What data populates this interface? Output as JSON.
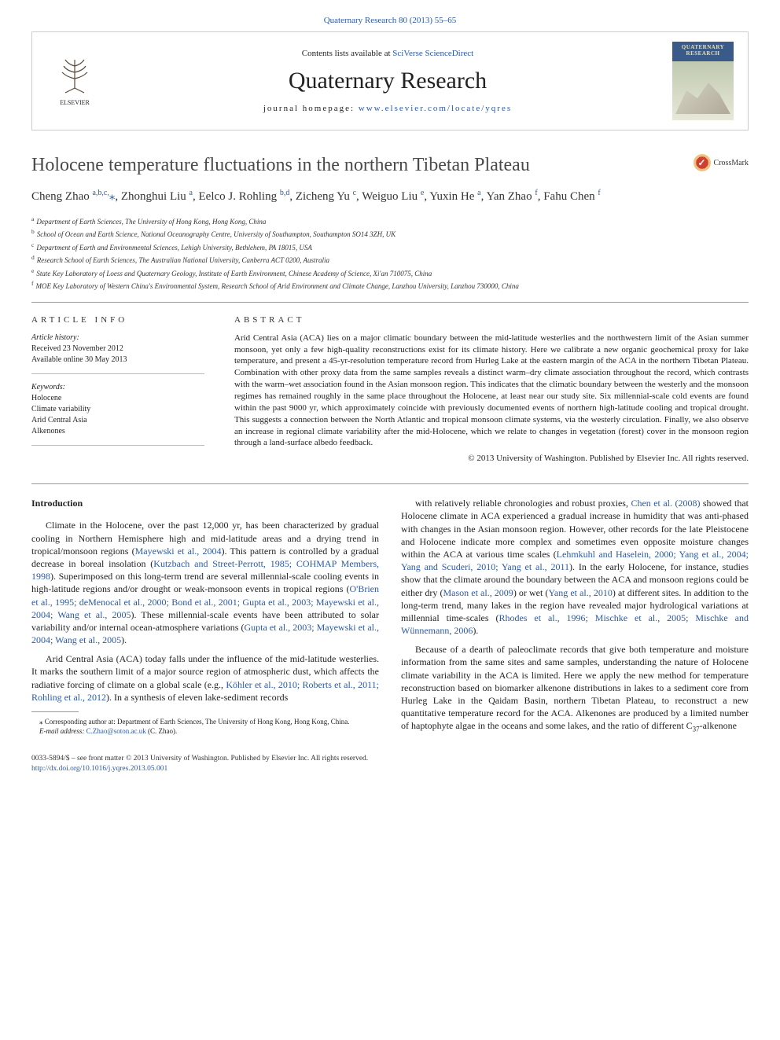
{
  "header": {
    "journal_ref": "Quaternary Research 80 (2013) 55–65",
    "contents_prefix": "Contents lists available at ",
    "contents_link": "SciVerse ScienceDirect",
    "journal_name": "Quaternary Research",
    "homepage_prefix": "journal homepage: ",
    "homepage_url": "www.elsevier.com/locate/yqres",
    "cover_label": "QUATERNARY RESEARCH",
    "elsevier_label": "ELSEVIER"
  },
  "crossmark": {
    "label": "CrossMark"
  },
  "article": {
    "title": "Holocene temperature fluctuations in the northern Tibetan Plateau",
    "authors_html": "Cheng Zhao <sup>a,b,c,</sup><span class='star'>⁎</span>, Zhonghui Liu <sup>a</sup>, Eelco J. Rohling <sup>b,d</sup>, Zicheng Yu <sup>c</sup>, Weiguo Liu <sup>e</sup>, Yuxin He <sup>a</sup>, Yan Zhao <sup>f</sup>, Fahu Chen <sup>f</sup>",
    "affiliations": [
      {
        "key": "a",
        "text": "Department of Earth Sciences, The University of Hong Kong, Hong Kong, China"
      },
      {
        "key": "b",
        "text": "School of Ocean and Earth Science, National Oceanography Centre, University of Southampton, Southampton SO14 3ZH, UK"
      },
      {
        "key": "c",
        "text": "Department of Earth and Environmental Sciences, Lehigh University, Bethlehem, PA 18015, USA"
      },
      {
        "key": "d",
        "text": "Research School of Earth Sciences, The Australian National University, Canberra ACT 0200, Australia"
      },
      {
        "key": "e",
        "text": "State Key Laboratory of Loess and Quaternary Geology, Institute of Earth Environment, Chinese Academy of Science, Xi'an 710075, China"
      },
      {
        "key": "f",
        "text": "MOE Key Laboratory of Western China's Environmental System, Research School of Arid Environment and Climate Change, Lanzhou University, Lanzhou 730000, China"
      }
    ]
  },
  "meta": {
    "info_heading": "ARTICLE INFO",
    "history_label": "Article history:",
    "received": "Received 23 November 2012",
    "online": "Available online 30 May 2013",
    "keywords_label": "Keywords:",
    "keywords": [
      "Holocene",
      "Climate variability",
      "Arid Central Asia",
      "Alkenones"
    ]
  },
  "abstract": {
    "heading": "ABSTRACT",
    "text": "Arid Central Asia (ACA) lies on a major climatic boundary between the mid-latitude westerlies and the northwestern limit of the Asian summer monsoon, yet only a few high-quality reconstructions exist for its climate history. Here we calibrate a new organic geochemical proxy for lake temperature, and present a 45-yr-resolution temperature record from Hurleg Lake at the eastern margin of the ACA in the northern Tibetan Plateau. Combination with other proxy data from the same samples reveals a distinct warm–dry climate association throughout the record, which contrasts with the warm–wet association found in the Asian monsoon region. This indicates that the climatic boundary between the westerly and the monsoon regimes has remained roughly in the same place throughout the Holocene, at least near our study site. Six millennial-scale cold events are found within the past 9000 yr, which approximately coincide with previously documented events of northern high-latitude cooling and tropical drought. This suggests a connection between the North Atlantic and tropical monsoon climate systems, via the westerly circulation. Finally, we also observe an increase in regional climate variability after the mid-Holocene, which we relate to changes in vegetation (forest) cover in the monsoon region through a land-surface albedo feedback.",
    "copyright": "© 2013 University of Washington. Published by Elsevier Inc. All rights reserved."
  },
  "body": {
    "intro_heading": "Introduction",
    "p1_a": "Climate in the Holocene, over the past 12,000 yr, has been characterized by gradual cooling in Northern Hemisphere high and mid-latitude areas and a drying trend in tropical/monsoon regions (",
    "p1_link1": "Mayewski et al., 2004",
    "p1_b": "). This pattern is controlled by a gradual decrease in boreal insolation (",
    "p1_link2": "Kutzbach and Street-Perrott, 1985; COHMAP Members, 1998",
    "p1_c": "). Superimposed on this long-term trend are several millennial-scale cooling events in high-latitude regions and/or drought or weak-monsoon events in tropical regions (",
    "p1_link3": "O'Brien et al., 1995; deMenocal et al., 2000; Bond et al., 2001; Gupta et al., 2003; Mayewski et al., 2004; Wang et al., 2005",
    "p1_d": "). These millennial-scale events have been attributed to solar variability and/or internal ocean-atmosphere variations (",
    "p1_link4": "Gupta et al., 2003; Mayewski et al., 2004; Wang et al., 2005",
    "p1_e": ").",
    "p2_a": "Arid Central Asia (ACA) today falls under the influence of the mid-latitude westerlies. It marks the southern limit of a major source region of atmospheric dust, which affects the radiative forcing of climate on a global scale (e.g., ",
    "p2_link1": "Köhler et al., 2010; Roberts et al., 2011; Rohling et al., 2012",
    "p2_b": "). In a synthesis of eleven lake-sediment records",
    "p3_a": "with relatively reliable chronologies and robust proxies, ",
    "p3_link1": "Chen et al. (2008)",
    "p3_b": " showed that Holocene climate in ACA experienced a gradual increase in humidity that was anti-phased with changes in the Asian monsoon region. However, other records for the late Pleistocene and Holocene indicate more complex and sometimes even opposite moisture changes within the ACA at various time scales (",
    "p3_link2": "Lehmkuhl and Haselein, 2000; Yang et al., 2004; Yang and Scuderi, 2010; Yang et al., 2011",
    "p3_c": "). In the early Holocene, for instance, studies show that the climate around the boundary between the ACA and monsoon regions could be either dry (",
    "p3_link3": "Mason et al., 2009",
    "p3_d": ") or wet (",
    "p3_link4": "Yang et al., 2010",
    "p3_e": ") at different sites. In addition to the long-term trend, many lakes in the region have revealed major hydrological variations at millennial time-scales (",
    "p3_link5": "Rhodes et al., 1996; Mischke et al., 2005; Mischke and Wünnemann, 2006",
    "p3_f": ").",
    "p4_a": "Because of a dearth of paleoclimate records that give both temperature and moisture information from the same sites and same samples, understanding the nature of Holocene climate variability in the ACA is limited. Here we apply the new method for temperature reconstruction based on biomarker alkenone distributions in lakes to a sediment core from Hurleg Lake in the Qaidam Basin, northern Tibetan Plateau, to reconstruct a new quantitative temperature record for the ACA. Alkenones are produced by a limited number of haptophyte algae in the oceans and some lakes, and the ratio of different C",
    "p4_sub": "37",
    "p4_b": "-alkenone"
  },
  "footnotes": {
    "corr_a": "⁎ Corresponding author at: Department of Earth Sciences, The University of Hong Kong, Hong Kong, China.",
    "email_label": "E-mail address: ",
    "email": "C.Zhao@soton.ac.uk",
    "email_suffix": " (C. Zhao)."
  },
  "footer": {
    "issn_line": "0033-5894/$ – see front matter © 2013 University of Washington. Published by Elsevier Inc. All rights reserved.",
    "doi": "http://dx.doi.org/10.1016/j.yqres.2013.05.001"
  },
  "colors": {
    "link": "#2959a8",
    "text": "#222222",
    "rule": "#999999",
    "banner_border": "#cccccc"
  }
}
